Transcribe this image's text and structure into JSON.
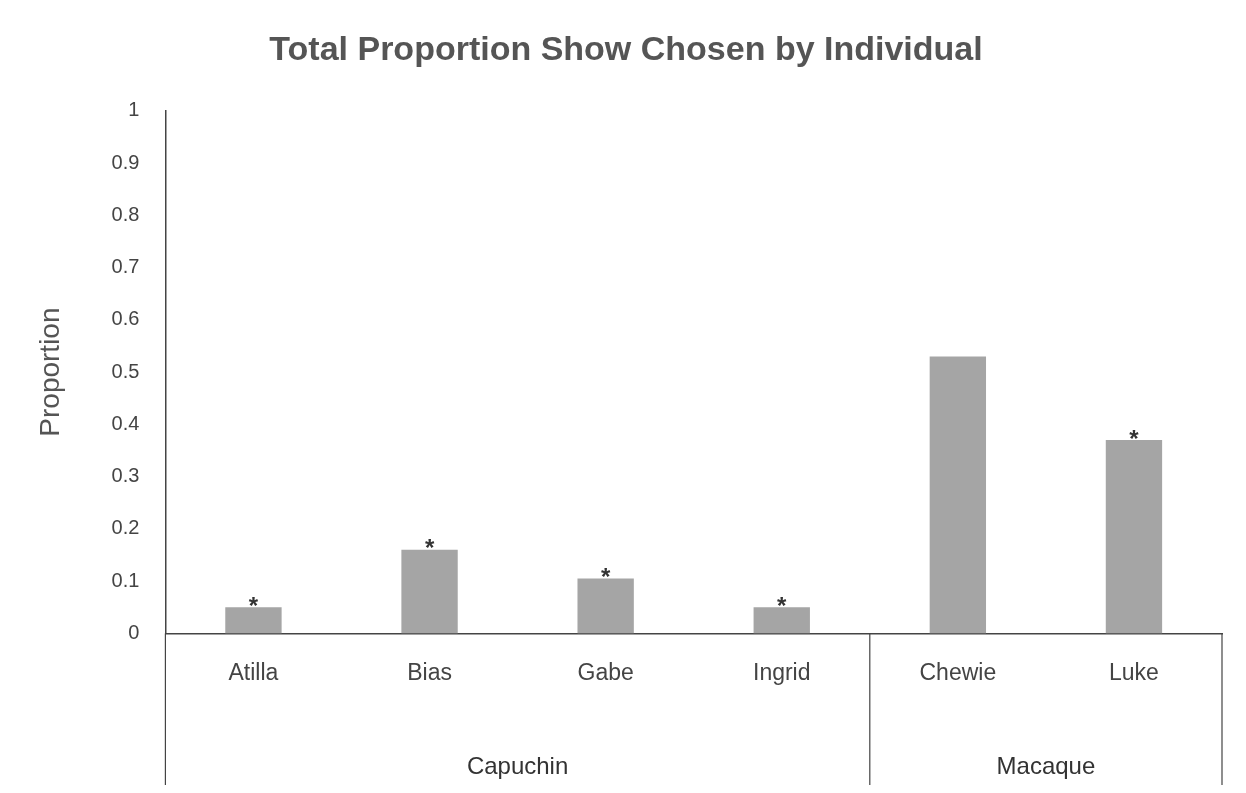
{
  "chart_data": {
    "type": "bar",
    "title": "Total Proportion Show Chosen by Individual",
    "ylabel": "Proportion",
    "categories": [
      "Atilla",
      "Bias",
      "Gabe",
      "Ingrid",
      "Chewie",
      "Luke"
    ],
    "values": [
      0.05,
      0.16,
      0.105,
      0.05,
      0.53,
      0.37
    ],
    "color": "#a5a5a5",
    "ylim": [
      0,
      1
    ],
    "yticks": [
      0,
      0.1,
      0.2,
      0.3,
      0.4,
      0.5,
      0.6,
      0.7,
      0.8,
      0.9,
      1
    ],
    "grid": false,
    "legend": false,
    "annotations": [
      {
        "text": "*",
        "x": "Atilla",
        "y": 0.05
      },
      {
        "text": "*",
        "x": "Bias",
        "y": 0.16
      },
      {
        "text": "*",
        "x": "Gabe",
        "y": 0.105
      },
      {
        "text": "*",
        "x": "Ingrid",
        "y": 0.05
      },
      {
        "text": "*",
        "x": "Luke",
        "y": 0.37
      },
      "Capuchin",
      "Macaque"
    ]
  }
}
